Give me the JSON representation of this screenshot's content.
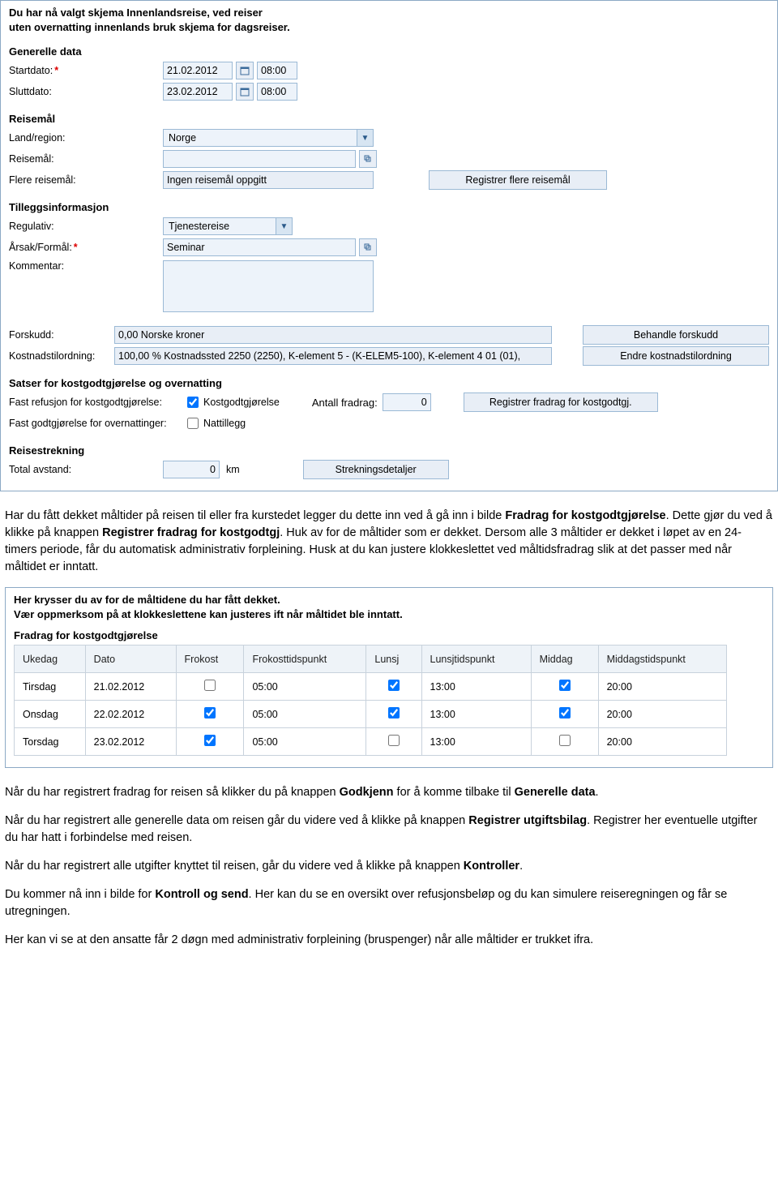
{
  "intro": {
    "line1": "Du har nå valgt skjema Innenlandsreise, ved reiser",
    "line2": "uten overnatting innenlands bruk skjema for dagsreiser."
  },
  "generelle": {
    "heading": "Generelle data",
    "startdato_label": "Startdato:",
    "startdato_value": "21.02.2012",
    "startdato_time": "08:00",
    "sluttdato_label": "Sluttdato:",
    "sluttdato_value": "23.02.2012",
    "sluttdato_time": "08:00"
  },
  "reisemal": {
    "heading": "Reisemål",
    "land_label": "Land/region:",
    "land_value": "Norge",
    "maal_label": "Reisemål:",
    "maal_value": "",
    "flere_label": "Flere reisemål:",
    "flere_value": "Ingen reisemål oppgitt",
    "registrer_btn": "Registrer flere reisemål"
  },
  "tillegg": {
    "heading": "Tilleggsinformasjon",
    "regulativ_label": "Regulativ:",
    "regulativ_value": "Tjenestereise",
    "arsak_label": "Årsak/Formål:",
    "arsak_value": "Seminar",
    "kommentar_label": "Kommentar:",
    "kommentar_value": ""
  },
  "forskudd": {
    "label": "Forskudd:",
    "value": "0,00 Norske kroner",
    "btn": "Behandle forskudd"
  },
  "kostnad": {
    "label": "Kostnadstilordning:",
    "value": "100,00 % Kostnadssted 2250 (2250), K-element 5 - (K-ELEM5-100), K-element 4 01 (01),",
    "btn": "Endre kostnadstilordning"
  },
  "satser": {
    "heading": "Satser for kostgodtgjørelse og overnatting",
    "fast_refusjon_label": "Fast refusjon for kostgodtgjørelse:",
    "kostgodtgj_check": "Kostgodtgjørelse",
    "kostgodtgj_checked": true,
    "antall_fradrag_label": "Antall fradrag:",
    "antall_fradrag_value": "0",
    "registrer_fradrag_btn": "Registrer fradrag for kostgodtgj.",
    "fast_godtgj_label": "Fast godtgjørelse for overnattinger:",
    "nattillegg_check": "Nattillegg",
    "nattillegg_checked": false
  },
  "reisestrekning": {
    "heading": "Reisestrekning",
    "total_label": "Total avstand:",
    "total_value": "0",
    "total_unit": "km",
    "btn": "Strekningsdetaljer"
  },
  "doc1": "Har du fått dekket måltider på reisen til eller fra kurstedet legger du dette inn ved å gå inn i bilde Fradrag for kostgodtgjørelse. Dette gjør du ved å klikke på knappen Registrer fradrag for kostgodtgj. Huk av for de måltider som er dekket. Dersom alle 3 måltider er dekket i løpet av en 24-timers periode, får du automatisk administrativ forpleining. Husk at du kan justere klokkeslettet ved måltidsfradrag slik at det passer med når måltidet er inntatt.",
  "doc1_b1": "Fradrag for kostgodtgjørelse",
  "doc1_b2": "Registrer fradrag for kostgodtgj",
  "meals": {
    "instruct1": "Her krysser du av for de måltidene du har fått dekket.",
    "instruct2": "Vær oppmerksom på at klokkeslettene kan justeres ift når måltidet ble inntatt.",
    "title": "Fradrag for kostgodtgjørelse",
    "cols": {
      "ukedag": "Ukedag",
      "dato": "Dato",
      "frokost": "Frokost",
      "frokosttid": "Frokosttidspunkt",
      "lunsj": "Lunsj",
      "lunsjtid": "Lunsjtidspunkt",
      "middag": "Middag",
      "middagtid": "Middagstidspunkt"
    },
    "rows": [
      {
        "ukedag": "Tirsdag",
        "dato": "21.02.2012",
        "frokost": false,
        "frokosttid": "05:00",
        "lunsj": true,
        "lunsjtid": "13:00",
        "middag": true,
        "middagtid": "20:00"
      },
      {
        "ukedag": "Onsdag",
        "dato": "22.02.2012",
        "frokost": true,
        "frokosttid": "05:00",
        "lunsj": true,
        "lunsjtid": "13:00",
        "middag": true,
        "middagtid": "20:00"
      },
      {
        "ukedag": "Torsdag",
        "dato": "23.02.2012",
        "frokost": true,
        "frokosttid": "05:00",
        "lunsj": false,
        "lunsjtid": "13:00",
        "middag": false,
        "middagtid": "20:00"
      }
    ]
  },
  "doc2": "Når du har registrert fradrag for reisen så klikker du på knappen Godkjenn for å komme tilbake til Generelle data.",
  "doc2_b1": "Godkjenn",
  "doc2_b2": "Generelle data",
  "doc3": "Når du har registrert alle generelle data om reisen går du videre ved å klikke på knappen Registrer utgiftsbilag. Registrer her eventuelle utgifter du har hatt i forbindelse med reisen.",
  "doc3_b1": "Registrer utgiftsbilag",
  "doc4": "Når du har registrert alle utgifter knyttet til reisen, går du videre ved å klikke på knappen Kontroller.",
  "doc4_b1": "Kontroller",
  "doc5": "Du kommer nå inn i bilde for Kontroll og send. Her kan du se en oversikt over refusjonsbeløp og du kan simulere reiseregningen og får se utregningen.",
  "doc5_b1": "Kontroll og send",
  "doc6": "Her kan vi se at den ansatte får 2 døgn med administrativ forpleining (bruspenger) når alle måltider er trukket ifra.",
  "colors": {
    "panel_border": "#8ca9c5",
    "field_border": "#9bb9d5",
    "field_bg": "#edf3fa",
    "readonly_bg": "#e8eef6",
    "combo_arrow_bg": "#d7e5f2",
    "table_border": "#c8d2dc",
    "table_header_bg": "#eef3f8"
  }
}
